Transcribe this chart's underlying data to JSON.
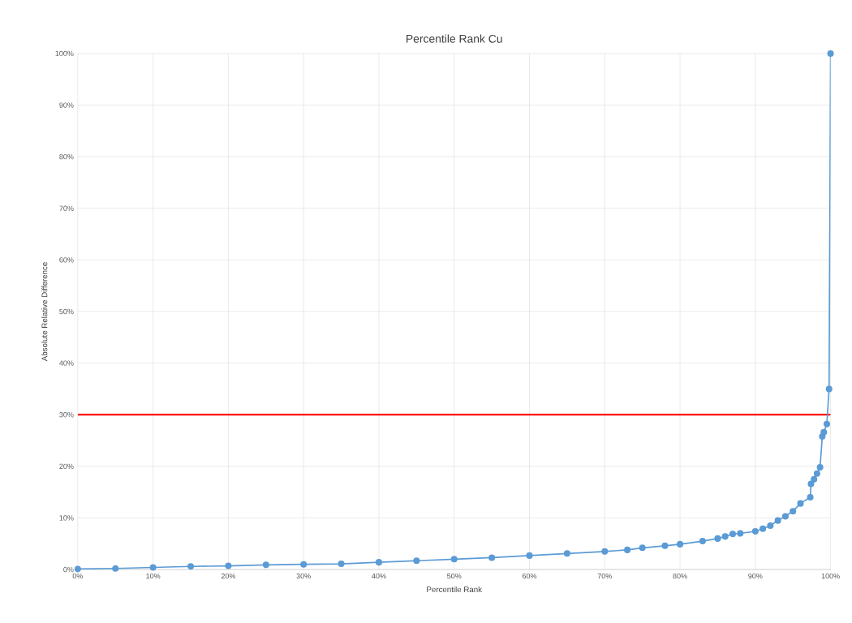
{
  "chart_data": {
    "type": "line",
    "title": "Percentile Rank Cu",
    "xlabel": "Percentile Rank",
    "ylabel": "Absolute Relative Difference",
    "series": [
      {
        "color": "#5b9bd5",
        "x": [
          0,
          5,
          10,
          15,
          20,
          25,
          30,
          35,
          40,
          45,
          50,
          55,
          60,
          65,
          70,
          73,
          75,
          78,
          80,
          83,
          85,
          86,
          87,
          88,
          90,
          91,
          92,
          93,
          94,
          95,
          96,
          97.3,
          97.4,
          97.8,
          98.2,
          98.6,
          98.9,
          99.1,
          99.5,
          99.8,
          100
        ],
        "values": [
          0.1,
          0.2,
          0.4,
          0.6,
          0.7,
          0.9,
          1.0,
          1.1,
          1.4,
          1.7,
          2.0,
          2.3,
          2.7,
          3.1,
          3.5,
          3.8,
          4.2,
          4.6,
          4.9,
          5.5,
          6.0,
          6.4,
          6.9,
          7.0,
          7.4,
          7.9,
          8.5,
          9.5,
          10.3,
          11.3,
          12.8,
          14.0,
          16.6,
          17.5,
          18.6,
          19.8,
          25.8,
          26.6,
          28.2,
          35.0,
          100
        ]
      }
    ],
    "xlim": [
      0,
      100
    ],
    "ylim": [
      0,
      100
    ],
    "xticks": [
      {
        "value": 0,
        "label": "0%"
      },
      {
        "value": 10,
        "label": "10%"
      },
      {
        "value": 20,
        "label": "20%"
      },
      {
        "value": 30,
        "label": "30%"
      },
      {
        "value": 40,
        "label": "40%"
      },
      {
        "value": 50,
        "label": "50%"
      },
      {
        "value": 60,
        "label": "60%"
      },
      {
        "value": 70,
        "label": "70%"
      },
      {
        "value": 80,
        "label": "80%"
      },
      {
        "value": 90,
        "label": "90%"
      },
      {
        "value": 100,
        "label": "100%"
      }
    ],
    "yticks": [
      {
        "value": 0,
        "label": "0%"
      },
      {
        "value": 10,
        "label": "10%"
      },
      {
        "value": 20,
        "label": "20%"
      },
      {
        "value": 30,
        "label": "30%"
      },
      {
        "value": 40,
        "label": "40%"
      },
      {
        "value": 50,
        "label": "50%"
      },
      {
        "value": 60,
        "label": "60%"
      },
      {
        "value": 70,
        "label": "70%"
      },
      {
        "value": 80,
        "label": "80%"
      },
      {
        "value": 90,
        "label": "90%"
      },
      {
        "value": 100,
        "label": "100%"
      }
    ],
    "ref_lines": [
      {
        "axis": "y",
        "value": 30,
        "color": "#ff0000"
      }
    ],
    "grid": true,
    "marker": "circle",
    "line_style": "solid"
  }
}
